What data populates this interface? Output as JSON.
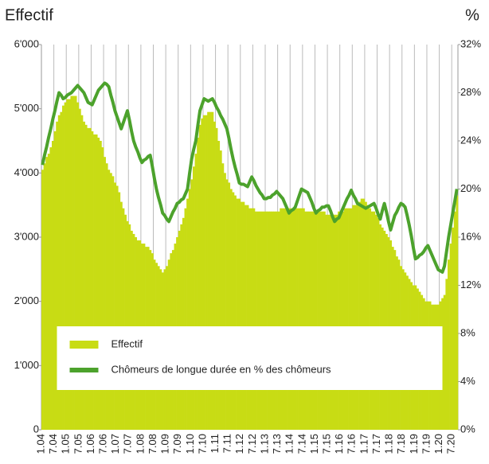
{
  "chart_data": {
    "type": "bar",
    "ylabel": "Effectif",
    "y2label": "%",
    "categories": [
      "1.04",
      null,
      null,
      null,
      null,
      null,
      "7.04",
      null,
      null,
      null,
      null,
      null,
      "1.05",
      null,
      null,
      null,
      null,
      null,
      "7.05",
      null,
      null,
      null,
      null,
      null,
      "1.06",
      null,
      null,
      null,
      null,
      null,
      "7.06",
      null,
      null,
      null,
      null,
      null,
      "1.07",
      null,
      null,
      null,
      null,
      null,
      "7.07",
      null,
      null,
      null,
      null,
      null,
      "1.08",
      null,
      null,
      null,
      null,
      null,
      "7.08",
      null,
      null,
      null,
      null,
      null,
      "1.09",
      null,
      null,
      null,
      null,
      null,
      "7.09",
      null,
      null,
      null,
      null,
      null,
      "1.10",
      null,
      null,
      null,
      null,
      null,
      "7.10",
      null,
      null,
      null,
      null,
      null,
      "1.11",
      null,
      null,
      null,
      null,
      null,
      "7.11",
      null,
      null,
      null,
      null,
      null,
      "1.12",
      null,
      null,
      null,
      null,
      null,
      "7.12",
      null,
      null,
      null,
      null,
      null,
      "1.13",
      null,
      null,
      null,
      null,
      null,
      "7.13",
      null,
      null,
      null,
      null,
      null,
      "1.14",
      null,
      null,
      null,
      null,
      null,
      "7.14",
      null,
      null,
      null,
      null,
      null,
      "1.15",
      null,
      null,
      null,
      null,
      null,
      "7.15",
      null,
      null,
      null,
      null,
      null,
      "1.16",
      null,
      null,
      null,
      null,
      null,
      "7.16",
      null,
      null,
      null,
      null,
      null,
      "1.17",
      null,
      null,
      null,
      null,
      null,
      "7.17",
      null,
      null,
      null,
      null,
      null,
      "1.18",
      null,
      null,
      null,
      null,
      null,
      "7.18",
      null,
      null,
      null,
      null,
      null,
      "1.19",
      null,
      null,
      null,
      null,
      null,
      "7.19",
      null,
      null,
      null,
      null,
      null,
      "1.20",
      null,
      null,
      null,
      null,
      null,
      "7.20",
      null,
      null
    ],
    "series": [
      {
        "name": "Effectif",
        "type": "bar",
        "color": "#c8dc14",
        "values": [
          4050,
          4150,
          4250,
          4300,
          4400,
          4500,
          4650,
          4800,
          4900,
          4950,
          5050,
          5100,
          5150,
          5150,
          5200,
          5200,
          5200,
          5100,
          5000,
          4900,
          4800,
          4750,
          4700,
          4700,
          4650,
          4600,
          4600,
          4550,
          4500,
          4400,
          4250,
          4150,
          4050,
          4000,
          3950,
          3850,
          3800,
          3700,
          3550,
          3450,
          3350,
          3250,
          3200,
          3100,
          3050,
          3000,
          2950,
          2950,
          2900,
          2900,
          2850,
          2850,
          2800,
          2750,
          2650,
          2600,
          2550,
          2500,
          2450,
          2500,
          2550,
          2650,
          2750,
          2800,
          2900,
          3000,
          3100,
          3200,
          3300,
          3450,
          3600,
          3750,
          3900,
          4100,
          4300,
          4550,
          4750,
          4850,
          4900,
          4900,
          4950,
          4950,
          4950,
          4800,
          4700,
          4500,
          4350,
          4150,
          4000,
          3900,
          3850,
          3750,
          3700,
          3650,
          3600,
          3600,
          3550,
          3550,
          3500,
          3500,
          3450,
          3450,
          3450,
          3400,
          3400,
          3400,
          3400,
          3400,
          3400,
          3400,
          3400,
          3400,
          3400,
          3400,
          3400,
          3450,
          3450,
          3450,
          3450,
          3450,
          3450,
          3450,
          3450,
          3450,
          3450,
          3450,
          3450,
          3400,
          3400,
          3400,
          3400,
          3400,
          3400,
          3400,
          3400,
          3400,
          3400,
          3350,
          3350,
          3350,
          3350,
          3350,
          3350,
          3400,
          3400,
          3400,
          3450,
          3450,
          3450,
          3450,
          3500,
          3500,
          3550,
          3550,
          3600,
          3600,
          3550,
          3500,
          3450,
          3400,
          3400,
          3350,
          3300,
          3200,
          3150,
          3100,
          3050,
          3000,
          2950,
          2850,
          2800,
          2700,
          2650,
          2550,
          2500,
          2450,
          2400,
          2350,
          2300,
          2250,
          2250,
          2200,
          2150,
          2100,
          2050,
          2000,
          2000,
          2000,
          1950,
          1950,
          1950,
          1950,
          2000,
          2050,
          2100,
          2350,
          2650,
          2900,
          3150,
          3400,
          3650
        ]
      },
      {
        "name": "Chômeurs de longue durée en % des chômeurs",
        "type": "line",
        "axis": "y2",
        "color": "#4ca22c",
        "values": [
          22.0,
          22.8,
          23.5,
          24.3,
          25.0,
          25.8,
          26.5,
          27.3,
          28.0,
          27.8,
          27.5,
          27.6,
          27.8,
          27.9,
          28.0,
          28.2,
          28.4,
          28.6,
          28.4,
          28.2,
          28.0,
          27.6,
          27.2,
          27.1,
          27.0,
          27.4,
          27.8,
          28.2,
          28.4,
          28.6,
          28.8,
          28.7,
          28.5,
          27.8,
          27.2,
          26.5,
          26.0,
          25.5,
          25.0,
          25.5,
          26.0,
          26.5,
          25.7,
          24.8,
          24.0,
          23.5,
          23.1,
          22.6,
          22.2,
          22.4,
          22.5,
          22.7,
          22.8,
          21.9,
          20.9,
          20.0,
          19.3,
          18.7,
          18.0,
          17.8,
          17.5,
          17.3,
          17.7,
          18.1,
          18.4,
          18.8,
          18.9,
          19.1,
          19.2,
          19.6,
          20.0,
          21.3,
          22.5,
          23.3,
          24.0,
          25.3,
          26.5,
          27.0,
          27.5,
          27.4,
          27.3,
          27.4,
          27.5,
          27.2,
          26.8,
          26.5,
          26.1,
          25.8,
          25.4,
          25.0,
          24.2,
          23.3,
          22.5,
          21.8,
          21.2,
          20.5,
          20.4,
          20.4,
          20.3,
          20.2,
          20.6,
          21.0,
          20.7,
          20.3,
          20.0,
          19.7,
          19.5,
          19.2,
          19.2,
          19.3,
          19.3,
          19.5,
          19.6,
          19.8,
          19.6,
          19.4,
          19.2,
          18.8,
          18.4,
          18.0,
          18.2,
          18.3,
          18.5,
          19.0,
          19.5,
          20.0,
          19.9,
          19.8,
          19.7,
          19.3,
          18.9,
          18.4,
          18.0,
          18.2,
          18.3,
          18.5,
          18.5,
          18.6,
          18.6,
          18.2,
          17.7,
          17.3,
          17.5,
          17.6,
          18.0,
          18.4,
          18.8,
          19.2,
          19.5,
          19.9,
          19.5,
          19.2,
          18.8,
          18.7,
          18.6,
          18.5,
          18.4,
          18.5,
          18.6,
          18.7,
          18.8,
          18.4,
          17.9,
          17.5,
          18.2,
          18.8,
          18.1,
          17.3,
          16.6,
          17.2,
          17.8,
          18.1,
          18.5,
          18.8,
          18.7,
          18.5,
          17.8,
          17.0,
          16.1,
          15.1,
          14.2,
          14.3,
          14.5,
          14.6,
          14.8,
          15.1,
          15.3,
          14.9,
          14.5,
          14.1,
          13.7,
          13.3,
          13.2,
          13.1,
          13.6,
          14.8,
          16.0,
          17.0,
          18.0,
          19.0,
          20.0
        ]
      }
    ],
    "ylim": [
      0,
      6000
    ],
    "yticks": [
      0,
      {
        "value": 1000,
        "label": "1'000"
      },
      {
        "value": 2000,
        "label": "2'000"
      },
      {
        "value": 3000,
        "label": "3'000"
      },
      {
        "value": 4000,
        "label": "4'000"
      },
      {
        "value": 5000,
        "label": "5'000"
      },
      {
        "value": 6000,
        "label": "6'000"
      }
    ],
    "y2lim": [
      0,
      32
    ],
    "y2ticks": [
      {
        "value": 0,
        "label": "0%"
      },
      {
        "value": 4,
        "label": "4%"
      },
      {
        "value": 8,
        "label": "8%"
      },
      {
        "value": 12,
        "label": "12%"
      },
      {
        "value": 16,
        "label": "16%"
      },
      {
        "value": 20,
        "label": "20%"
      },
      {
        "value": 24,
        "label": "24%"
      },
      {
        "value": 28,
        "label": "28%"
      },
      {
        "value": 32,
        "label": "32%"
      }
    ],
    "grid": true,
    "legend": "bottom"
  }
}
